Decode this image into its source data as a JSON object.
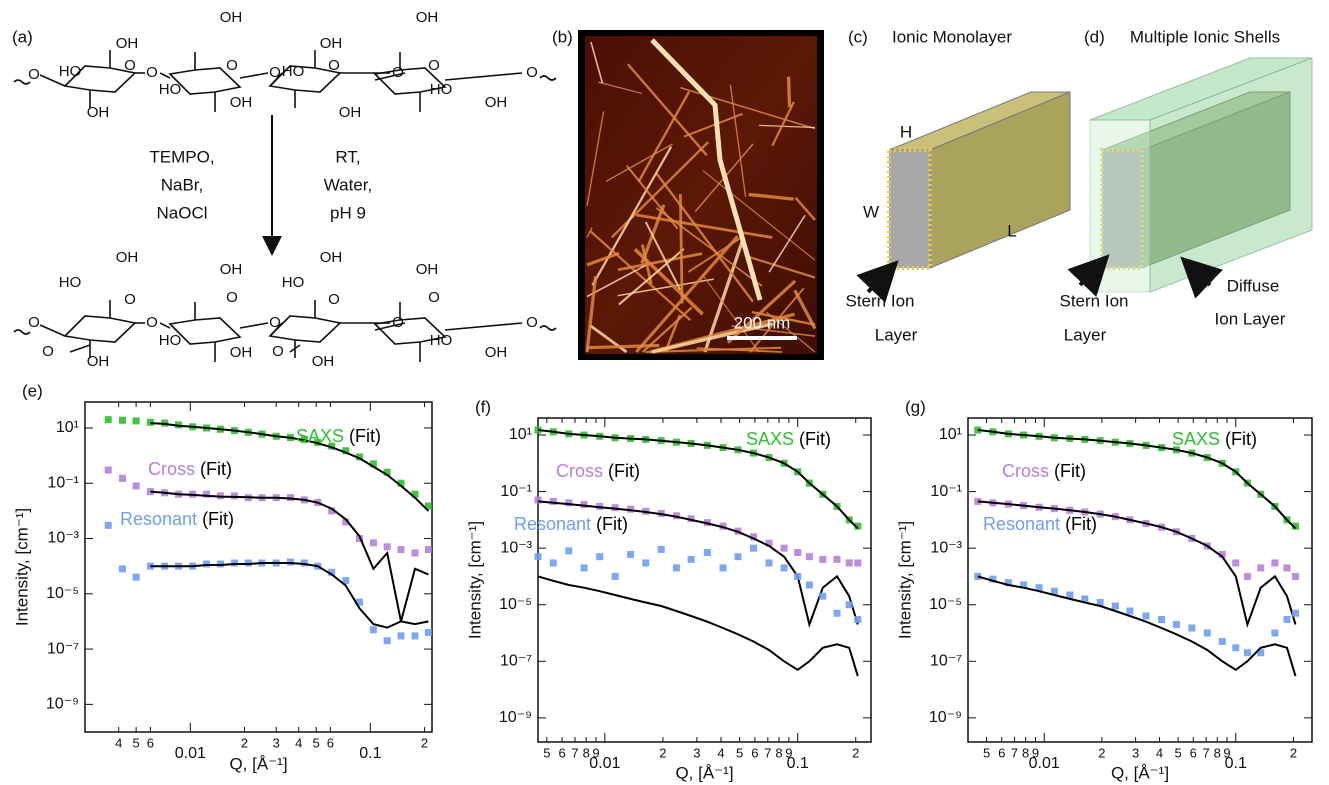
{
  "scheme": {
    "label": "(a)",
    "reagents": [
      "TEMPO,",
      "NaBr,",
      "NaOCl"
    ],
    "conditions": [
      "RT,",
      "Water,",
      "pH 9"
    ],
    "reactant_atoms": [
      "O",
      "HO",
      "OH",
      "O",
      "O",
      "HO",
      "OH",
      "O",
      "OH",
      "O",
      "HO",
      "OH",
      "O",
      "OH",
      "O",
      "HO",
      "OH",
      "O",
      "OH",
      "O",
      "OH"
    ],
    "product_atoms": [
      "O",
      "HO",
      "OH",
      "O",
      "O",
      "HO",
      "OH",
      "O",
      "OH",
      "O",
      "HO",
      "OH",
      "O",
      "O",
      "HO",
      "OH",
      "O",
      "OH",
      "O",
      "O",
      "OH",
      "O",
      "OH"
    ]
  },
  "afm": {
    "label": "(b)",
    "scale_bar": "200 nm"
  },
  "monolayer": {
    "label": "(c)",
    "title": "Ionic Monolayer",
    "height": "H",
    "width": "W",
    "length": "L",
    "stern": [
      "Stern Ion",
      "Layer"
    ]
  },
  "shells": {
    "label": "(d)",
    "title": "Multiple Ionic Shells",
    "stern": [
      "Stern Ion",
      "Layer"
    ],
    "diffuse": [
      "Diffuse",
      "Ion Layer"
    ]
  },
  "chart_data": [
    {
      "type": "scatter",
      "panel_label": "(e)",
      "xlabel": "Q, [Å⁻¹]",
      "ylabel": "Intensity, [cm⁻¹]",
      "xlog": true,
      "ylog": true,
      "xlim": [
        0.0026,
        0.22
      ],
      "ylim": [
        1e-10,
        87
      ],
      "xticks": [
        {
          "value": 0.004,
          "label": "4"
        },
        {
          "value": 0.005,
          "label": "5"
        },
        {
          "value": 0.006,
          "label": "6"
        },
        0.01,
        {
          "value": 0.02,
          "label": "2"
        },
        {
          "value": 0.03,
          "label": "3"
        },
        {
          "value": 0.04,
          "label": "4"
        },
        {
          "value": 0.05,
          "label": "5"
        },
        {
          "value": 0.06,
          "label": "6"
        },
        0.1,
        {
          "value": 0.2,
          "label": "2"
        }
      ],
      "yticks": [
        {
          "value": 10,
          "label": "10¹"
        },
        {
          "value": 0.1,
          "label": "10⁻¹"
        },
        {
          "value": 0.001,
          "label": "10⁻³"
        },
        {
          "value": 1e-05,
          "label": "10⁻⁵"
        },
        {
          "value": 1e-07,
          "label": "10⁻⁷"
        },
        {
          "value": 1e-09,
          "label": "10⁻⁹"
        }
      ],
      "x": [
        0.0035,
        0.0042,
        0.005,
        0.006,
        0.0072,
        0.0086,
        0.0103,
        0.0123,
        0.0147,
        0.0176,
        0.021,
        0.025,
        0.03,
        0.036,
        0.043,
        0.051,
        0.061,
        0.073,
        0.087,
        0.104,
        0.124,
        0.148,
        0.177,
        0.21
      ],
      "series": [
        {
          "name": "SAXS",
          "color": "#2ec02e",
          "style": "points",
          "values": [
            20,
            19,
            18,
            16,
            15,
            13,
            11,
            10,
            9,
            8,
            7,
            6,
            5,
            4.5,
            3.8,
            3,
            2.2,
            1.5,
            0.9,
            0.5,
            0.25,
            0.1,
            0.04,
            0.015
          ]
        },
        {
          "name": "(Fit)",
          "color": "#000000",
          "style": "line",
          "values": [
            null,
            null,
            null,
            15,
            14,
            12,
            11,
            10,
            9,
            8,
            7,
            6,
            5,
            4.4,
            3.6,
            2.8,
            2,
            1.3,
            0.8,
            0.4,
            0.2,
            0.08,
            0.03,
            0.01
          ]
        },
        {
          "name": "Cross",
          "color": "#b77fd9",
          "style": "points",
          "values": [
            0.3,
            0.15,
            0.08,
            0.05,
            0.045,
            0.04,
            0.04,
            0.04,
            0.035,
            0.035,
            0.03,
            0.03,
            0.03,
            0.03,
            0.025,
            0.02,
            0.01,
            0.004,
            0.001,
            0.0007,
            0.0005,
            0.0004,
            0.0003,
            0.0004
          ]
        },
        {
          "name": "(Fit)",
          "color": "#000000",
          "style": "line",
          "values": [
            null,
            null,
            null,
            0.05,
            0.045,
            0.04,
            0.038,
            0.035,
            0.033,
            0.032,
            0.031,
            0.03,
            0.03,
            0.028,
            0.025,
            0.02,
            0.012,
            0.005,
            0.0012,
            8e-05,
            0.0003,
            1e-06,
            8e-05,
            5e-05
          ]
        },
        {
          "name": "Resonant",
          "color": "#6f9ef0",
          "style": "points",
          "values": [
            0.003,
            8e-05,
            4e-05,
            0.0001,
            0.0001,
            0.0001,
            0.0001,
            0.00012,
            0.00012,
            0.00013,
            0.00013,
            0.00013,
            0.00013,
            0.00014,
            0.00013,
            0.0001,
            6e-05,
            3e-05,
            5e-06,
            5e-07,
            2e-07,
            3e-07,
            3e-07,
            4e-07
          ]
        },
        {
          "name": "(Fit)",
          "color": "#000000",
          "style": "line",
          "values": [
            null,
            null,
            null,
            0.0001,
            0.0001,
            0.0001,
            0.0001,
            0.00011,
            0.00011,
            0.00012,
            0.00012,
            0.00013,
            0.00013,
            0.00013,
            0.00012,
            0.0001,
            5e-05,
            2e-05,
            3e-06,
            8e-07,
            6e-07,
            1e-06,
            8e-07,
            1e-06
          ]
        }
      ]
    },
    {
      "type": "scatter",
      "panel_label": "(f)",
      "xlabel": "Q, [Å⁻¹]",
      "ylabel": "Intensity, [cm⁻¹]",
      "xlog": true,
      "ylog": true,
      "xlim": [
        0.0045,
        0.24
      ],
      "ylim": [
        1.4e-10,
        40
      ],
      "xticks": [
        {
          "value": 0.005,
          "label": "5"
        },
        {
          "value": 0.006,
          "label": "6"
        },
        {
          "value": 0.007,
          "label": "7"
        },
        {
          "value": 0.008,
          "label": "8"
        },
        {
          "value": 0.009,
          "label": "9"
        },
        0.01,
        {
          "value": 0.02,
          "label": "2"
        },
        {
          "value": 0.03,
          "label": "3"
        },
        {
          "value": 0.04,
          "label": "4"
        },
        {
          "value": 0.05,
          "label": "5"
        },
        {
          "value": 0.06,
          "label": "6"
        },
        {
          "value": 0.07,
          "label": "7"
        },
        {
          "value": 0.08,
          "label": "8"
        },
        {
          "value": 0.09,
          "label": "9"
        },
        0.1,
        {
          "value": 0.2,
          "label": "2"
        }
      ],
      "yticks": [
        {
          "value": 10,
          "label": "10¹"
        },
        {
          "value": 0.1,
          "label": "10⁻¹"
        },
        {
          "value": 0.001,
          "label": "10⁻³"
        },
        {
          "value": 1e-05,
          "label": "10⁻⁵"
        },
        {
          "value": 1e-07,
          "label": "10⁻⁷"
        },
        {
          "value": 1e-09,
          "label": "10⁻⁹"
        }
      ],
      "x": [
        0.0045,
        0.0054,
        0.0065,
        0.0078,
        0.0094,
        0.0113,
        0.0136,
        0.0163,
        0.0196,
        0.0235,
        0.028,
        0.034,
        0.041,
        0.049,
        0.059,
        0.071,
        0.085,
        0.1,
        0.115,
        0.135,
        0.16,
        0.185,
        0.205
      ],
      "series": [
        {
          "name": "SAXS",
          "color": "#2ec02e",
          "style": "points",
          "values": [
            15,
            13,
            11,
            10,
            9,
            8,
            7.5,
            7,
            6.3,
            5.6,
            5,
            4.3,
            3.6,
            3,
            2.3,
            1.6,
            1,
            0.5,
            0.2,
            0.08,
            0.03,
            0.01,
            0.006
          ]
        },
        {
          "name": "(Fit)",
          "color": "#000000",
          "style": "line",
          "values": [
            15,
            13,
            11,
            10,
            9,
            8,
            7.5,
            7,
            6.3,
            5.6,
            5,
            4.3,
            3.6,
            3,
            2.3,
            1.6,
            1,
            0.5,
            0.2,
            0.08,
            0.03,
            0.01,
            0.005
          ]
        },
        {
          "name": "Cross",
          "color": "#b77fd9",
          "style": "points",
          "values": [
            0.05,
            0.045,
            0.04,
            0.035,
            0.03,
            0.027,
            0.024,
            0.02,
            0.017,
            0.014,
            0.011,
            0.008,
            0.006,
            0.004,
            0.0025,
            0.0015,
            0.001,
            0.0007,
            0.0005,
            0.0004,
            0.0004,
            0.0003,
            0.0003
          ]
        },
        {
          "name": "(Fit)",
          "color": "#000000",
          "style": "line",
          "values": [
            0.045,
            0.04,
            0.036,
            0.032,
            0.028,
            0.025,
            0.022,
            0.019,
            0.016,
            0.013,
            0.01,
            0.0075,
            0.0055,
            0.0038,
            0.0022,
            0.0012,
            0.0005,
            0.0001,
            2e-06,
            4e-05,
            0.0001,
            2e-05,
            2e-06
          ]
        },
        {
          "name": "Resonant",
          "color": "#6f9ef0",
          "style": "points",
          "values": [
            0.0005,
            0.0003,
            0.0008,
            0.0002,
            0.0005,
            0.0001,
            0.0006,
            0.0003,
            0.0009,
            0.0002,
            0.0004,
            0.0007,
            0.0002,
            0.0005,
            0.001,
            0.0003,
            0.0002,
            0.0001,
            5e-05,
            2e-05,
            5e-06,
            1e-05,
            3e-06
          ]
        },
        {
          "name": "(Fit)",
          "color": "#000000",
          "style": "line",
          "values": [
            0.0001,
            7e-05,
            5e-05,
            4e-05,
            3e-05,
            2.2e-05,
            1.6e-05,
            1.2e-05,
            9e-06,
            6e-06,
            4e-06,
            2.5e-06,
            1.5e-06,
            9e-07,
            5e-07,
            2.5e-07,
            1e-07,
            5e-08,
            1e-07,
            3e-07,
            4e-07,
            3e-07,
            3e-08
          ]
        }
      ]
    },
    {
      "type": "scatter",
      "panel_label": "(g)",
      "xlabel": "Q, [Å⁻¹]",
      "ylabel": "Intensity, [cm⁻¹]",
      "xlog": true,
      "ylog": true,
      "xlim": [
        0.004,
        0.25
      ],
      "ylim": [
        1.4e-10,
        40
      ],
      "xticks": [
        {
          "value": 0.005,
          "label": "5"
        },
        {
          "value": 0.006,
          "label": "6"
        },
        {
          "value": 0.007,
          "label": "7"
        },
        {
          "value": 0.008,
          "label": "8"
        },
        {
          "value": 0.009,
          "label": "9"
        },
        0.01,
        {
          "value": 0.02,
          "label": "2"
        },
        {
          "value": 0.03,
          "label": "3"
        },
        {
          "value": 0.04,
          "label": "4"
        },
        {
          "value": 0.05,
          "label": "5"
        },
        {
          "value": 0.06,
          "label": "6"
        },
        {
          "value": 0.07,
          "label": "7"
        },
        {
          "value": 0.08,
          "label": "8"
        },
        {
          "value": 0.09,
          "label": "9"
        },
        0.1,
        {
          "value": 0.2,
          "label": "2"
        }
      ],
      "yticks": [
        {
          "value": 10,
          "label": "10¹"
        },
        {
          "value": 0.1,
          "label": "10⁻¹"
        },
        {
          "value": 0.001,
          "label": "10⁻³"
        },
        {
          "value": 1e-05,
          "label": "10⁻⁵"
        },
        {
          "value": 1e-07,
          "label": "10⁻⁷"
        },
        {
          "value": 1e-09,
          "label": "10⁻⁹"
        }
      ],
      "x": [
        0.0045,
        0.0054,
        0.0065,
        0.0078,
        0.0094,
        0.0113,
        0.0136,
        0.0163,
        0.0196,
        0.0235,
        0.028,
        0.034,
        0.041,
        0.049,
        0.059,
        0.071,
        0.085,
        0.1,
        0.115,
        0.135,
        0.16,
        0.185,
        0.205
      ],
      "series": [
        {
          "name": "SAXS",
          "color": "#2ec02e",
          "style": "points",
          "values": [
            15,
            13,
            11,
            10,
            9,
            8,
            7.5,
            7,
            6.3,
            5.6,
            5,
            4.3,
            3.6,
            3,
            2.3,
            1.6,
            1,
            0.5,
            0.2,
            0.08,
            0.03,
            0.01,
            0.006
          ]
        },
        {
          "name": "(Fit)",
          "color": "#000000",
          "style": "line",
          "values": [
            15,
            13,
            11,
            10,
            9,
            8,
            7.5,
            7,
            6.3,
            5.6,
            5,
            4.3,
            3.6,
            3,
            2.3,
            1.6,
            1,
            0.5,
            0.2,
            0.08,
            0.03,
            0.01,
            0.005
          ]
        },
        {
          "name": "Cross",
          "color": "#b77fd9",
          "style": "points",
          "values": [
            0.045,
            0.04,
            0.036,
            0.032,
            0.028,
            0.025,
            0.022,
            0.019,
            0.016,
            0.013,
            0.01,
            0.0075,
            0.0055,
            0.0038,
            0.0022,
            0.0012,
            0.0006,
            0.0003,
            0.0001,
            0.0002,
            0.0003,
            0.0002,
            0.0001
          ]
        },
        {
          "name": "(Fit)",
          "color": "#000000",
          "style": "line",
          "values": [
            0.045,
            0.04,
            0.036,
            0.032,
            0.028,
            0.025,
            0.022,
            0.019,
            0.016,
            0.013,
            0.01,
            0.0075,
            0.0055,
            0.0038,
            0.0022,
            0.0012,
            0.0005,
            0.0001,
            2e-06,
            4e-05,
            0.0001,
            2e-05,
            2e-06
          ]
        },
        {
          "name": "Resonant",
          "color": "#6f9ef0",
          "style": "points",
          "values": [
            0.0001,
            8e-05,
            6e-05,
            5e-05,
            4e-05,
            3e-05,
            2.2e-05,
            1.6e-05,
            1.2e-05,
            9e-06,
            6e-06,
            4e-06,
            3e-06,
            2e-06,
            1.5e-06,
            1e-06,
            5e-07,
            3e-07,
            2e-07,
            2e-07,
            1e-06,
            3e-06,
            5e-06
          ]
        },
        {
          "name": "(Fit)",
          "color": "#000000",
          "style": "line",
          "values": [
            0.0001,
            7e-05,
            5e-05,
            4e-05,
            3e-05,
            2.2e-05,
            1.6e-05,
            1.2e-05,
            9e-06,
            6e-06,
            4e-06,
            2.5e-06,
            1.5e-06,
            9e-07,
            5e-07,
            2.5e-07,
            1e-07,
            5e-08,
            1e-07,
            3e-07,
            4e-07,
            3e-07,
            3e-08
          ]
        }
      ]
    }
  ]
}
